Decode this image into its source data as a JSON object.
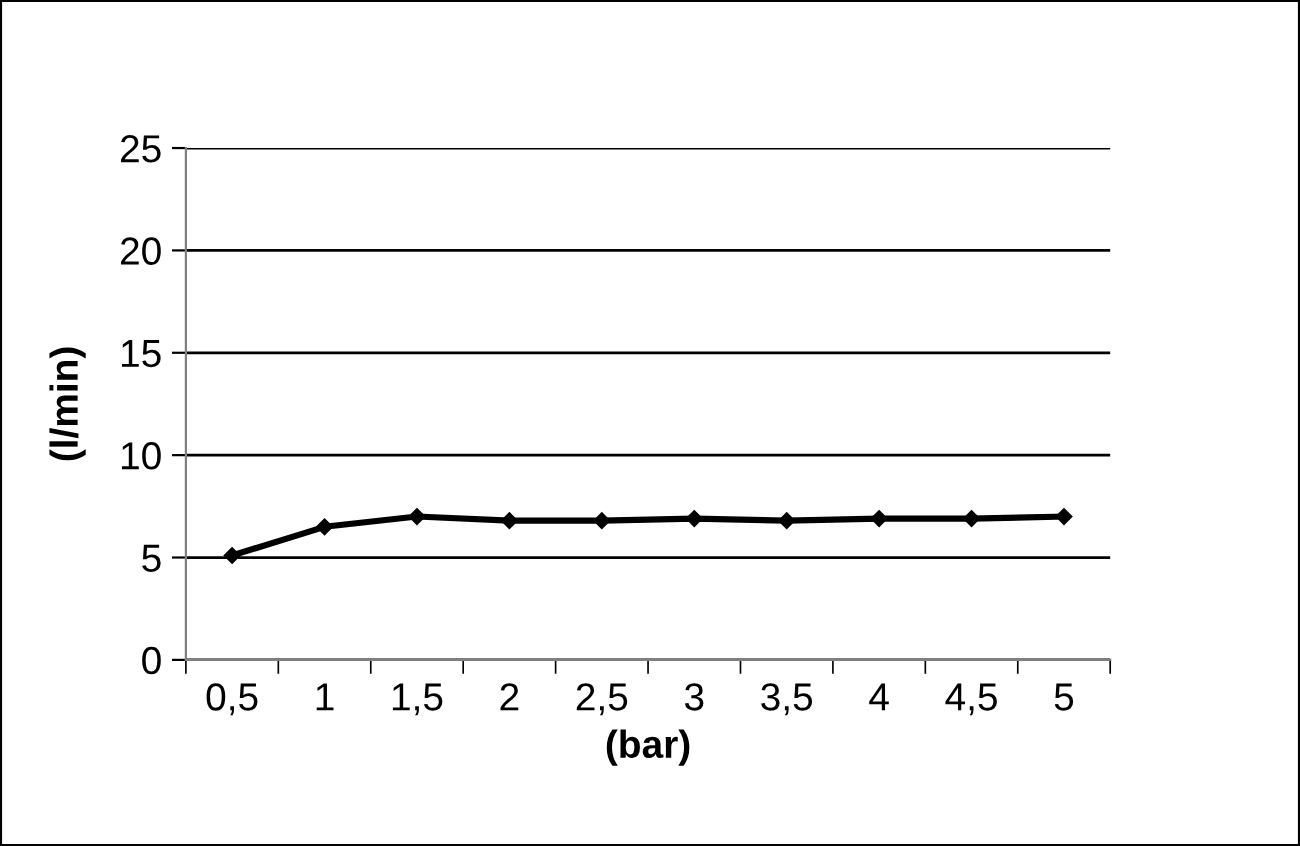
{
  "chart_data": {
    "type": "line",
    "xlabel": "(bar)",
    "ylabel": "(l/min)",
    "categories": [
      "0,5",
      "1",
      "1,5",
      "2",
      "2,5",
      "3",
      "3,5",
      "4",
      "4,5",
      "5"
    ],
    "series": [
      {
        "color": "#000000",
        "values": [
          5.1,
          6.5,
          7.0,
          6.8,
          6.8,
          6.9,
          6.8,
          6.9,
          6.9,
          7.0
        ]
      }
    ],
    "ylim": [
      0,
      25
    ],
    "yticks": [
      0,
      5,
      10,
      15,
      20,
      25
    ],
    "grid": "y",
    "marker": "diamond",
    "line_style": "solid"
  }
}
